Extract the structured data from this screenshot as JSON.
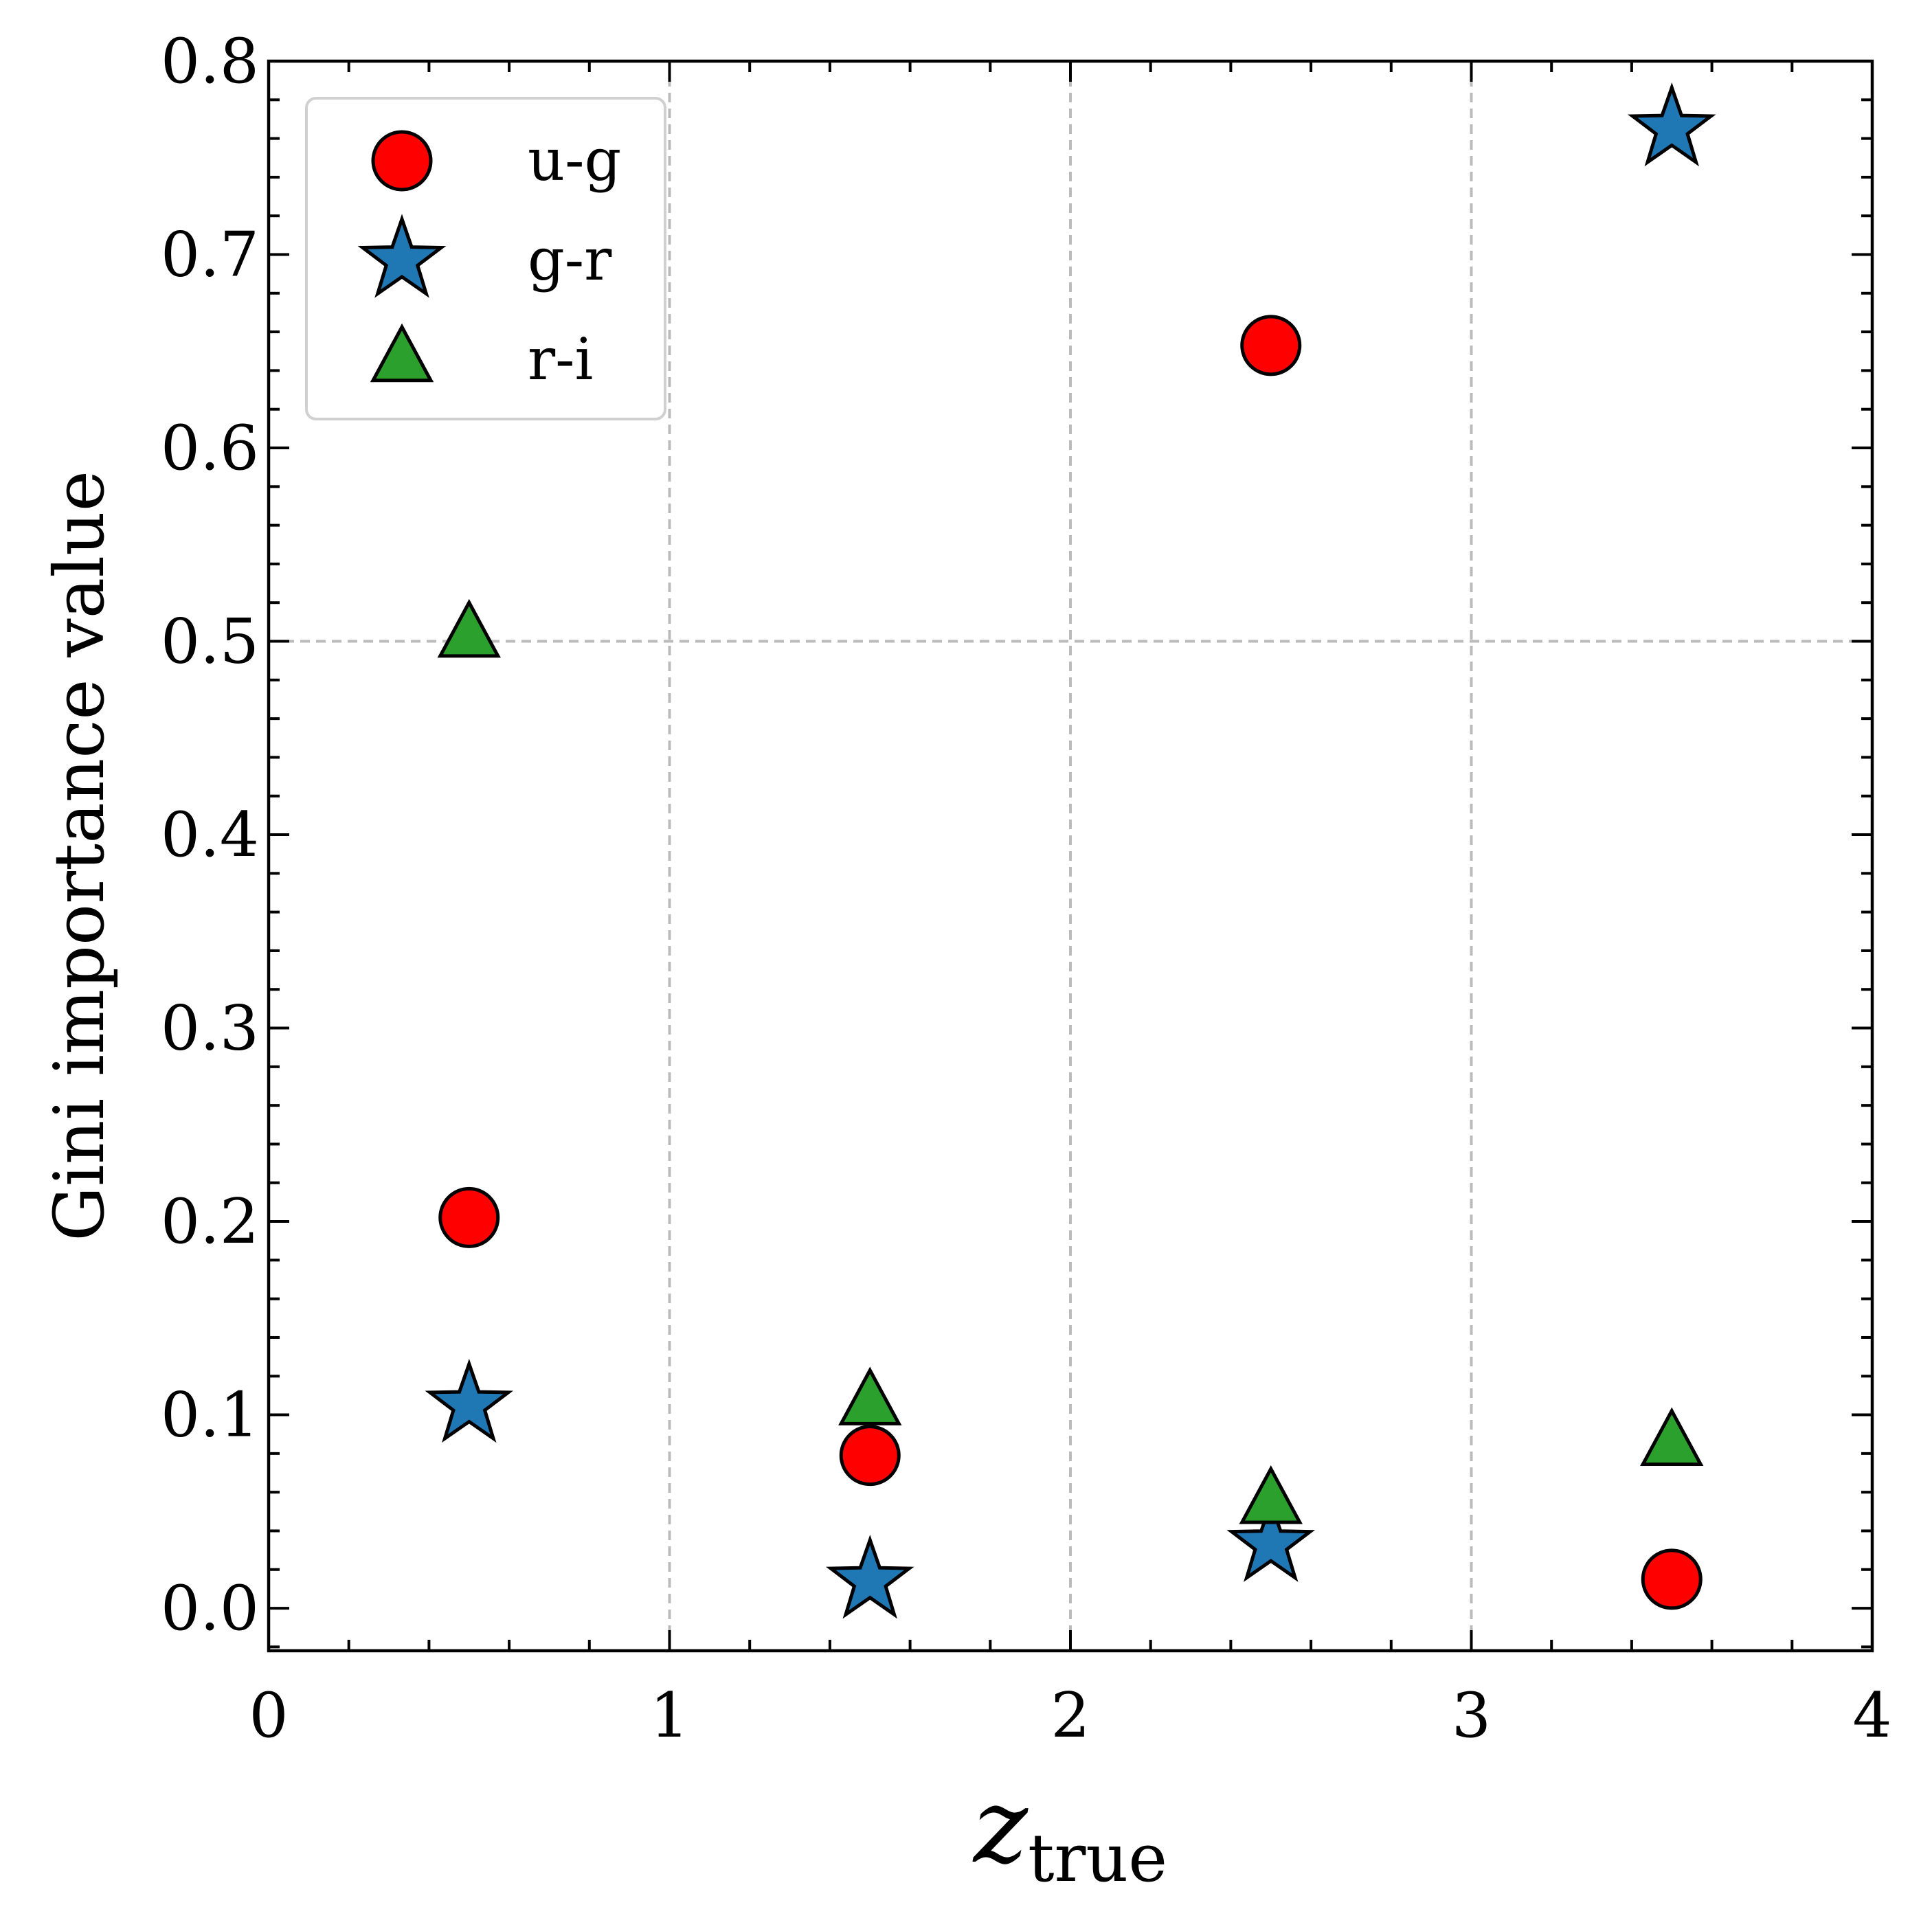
{
  "chart_data": {
    "type": "scatter",
    "title": "",
    "xlabel": "z",
    "xlabel_subscript": "true",
    "ylabel": "Gini importance value",
    "xlim": [
      0,
      4
    ],
    "ylim": [
      -0.022,
      0.8
    ],
    "x_ticks": [
      "0",
      "1",
      "2",
      "3",
      "4"
    ],
    "y_ticks": [
      "0.0",
      "0.1",
      "0.2",
      "0.3",
      "0.4",
      "0.5",
      "0.6",
      "0.7",
      "0.8"
    ],
    "grid": true,
    "legend_position": "top-left",
    "series": [
      {
        "name": "u-g",
        "marker": "circle",
        "color": "#ff0000",
        "points": [
          {
            "x": 0.5,
            "y": 0.202
          },
          {
            "x": 1.5,
            "y": 0.079
          },
          {
            "x": 2.5,
            "y": 0.653
          },
          {
            "x": 3.5,
            "y": 0.015
          }
        ]
      },
      {
        "name": "g-r",
        "marker": "star",
        "color": "#1f77b4",
        "points": [
          {
            "x": 0.5,
            "y": 0.105
          },
          {
            "x": 1.5,
            "y": 0.014
          },
          {
            "x": 2.5,
            "y": 0.033
          },
          {
            "x": 3.5,
            "y": 0.765
          }
        ]
      },
      {
        "name": "r-i",
        "marker": "triangle",
        "color": "#2ca02c",
        "points": [
          {
            "x": 0.5,
            "y": 0.503
          },
          {
            "x": 1.5,
            "y": 0.106
          },
          {
            "x": 2.5,
            "y": 0.055
          },
          {
            "x": 3.5,
            "y": 0.085
          }
        ]
      }
    ]
  }
}
